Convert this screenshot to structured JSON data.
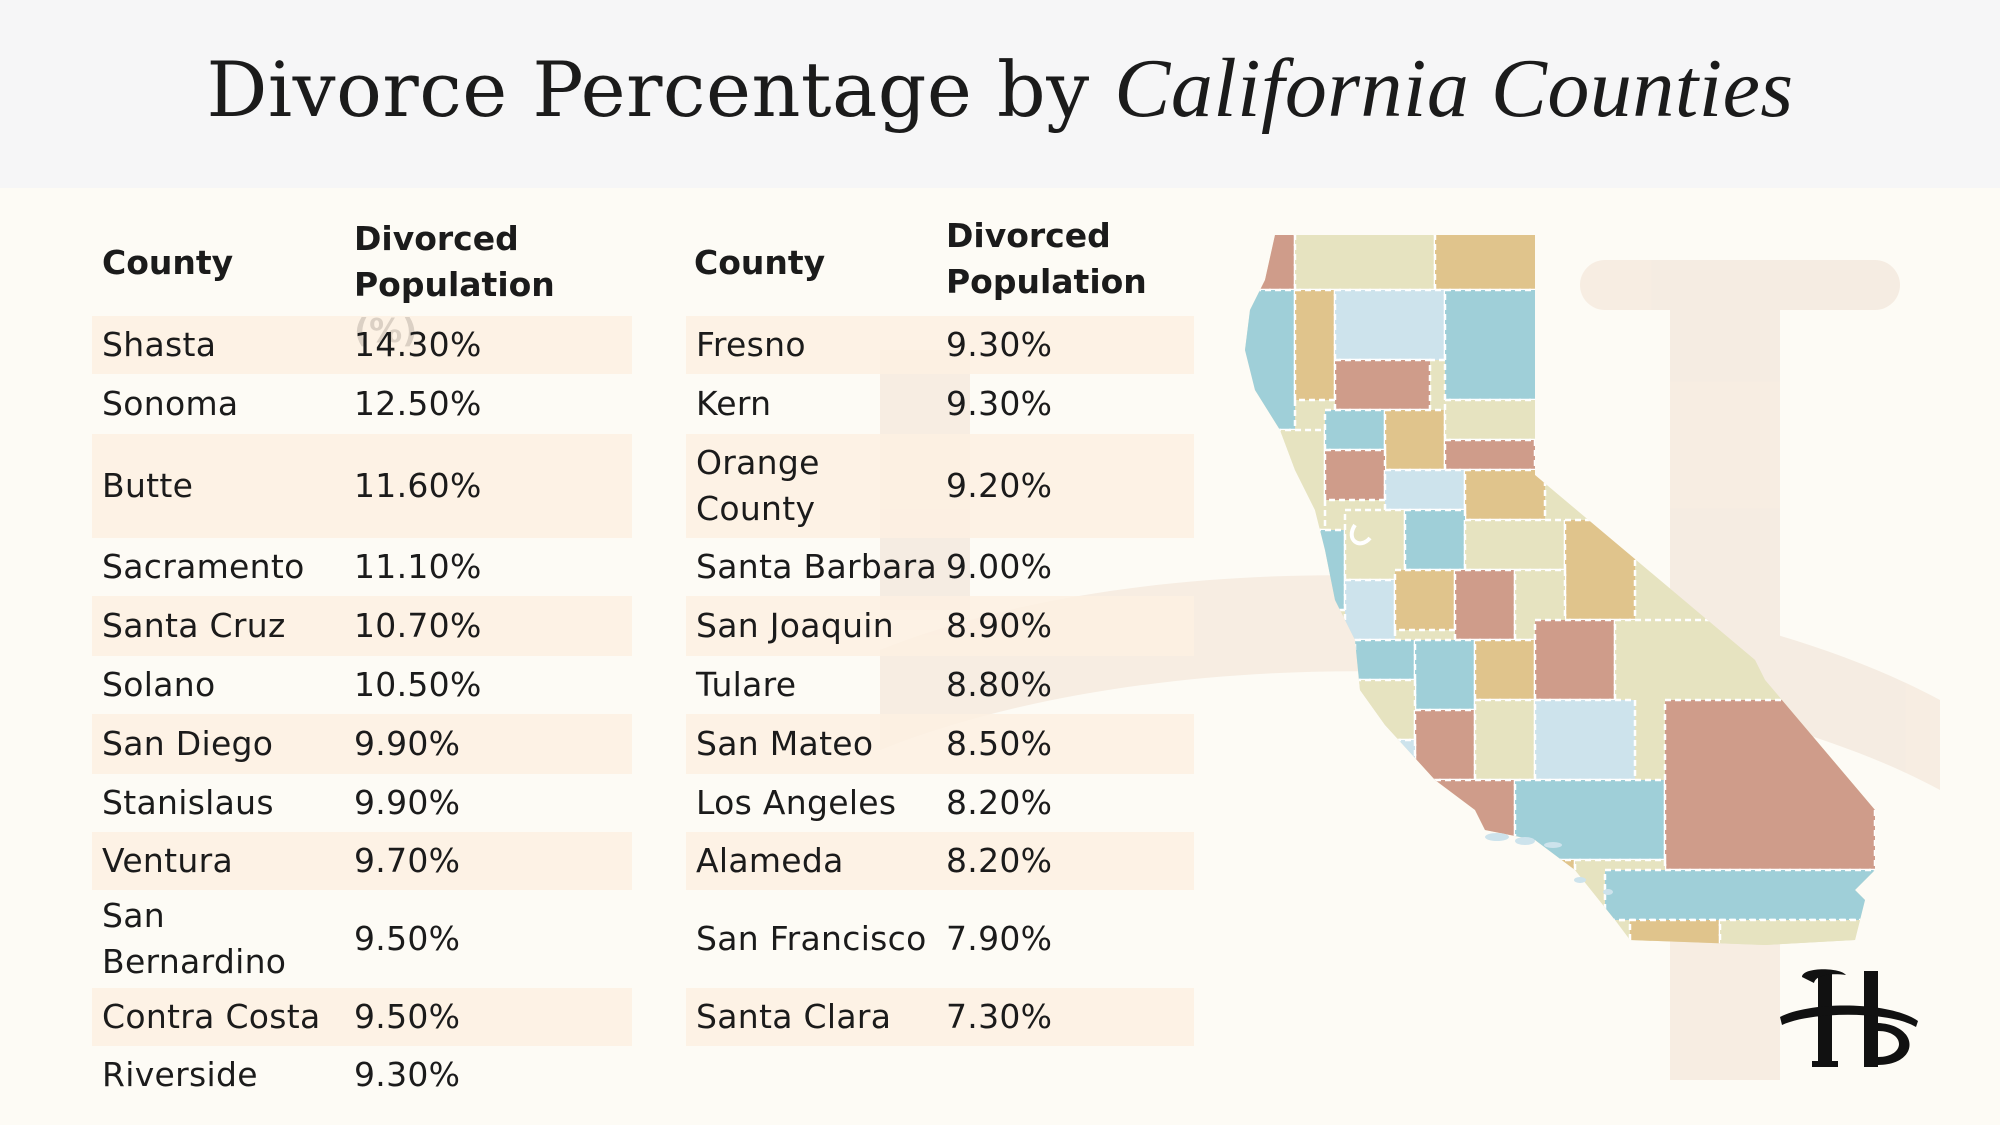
{
  "title": {
    "main": "Divorce Percentage by ",
    "script": "California Counties"
  },
  "tables": [
    {
      "header_county": "County",
      "header_value_line1": "Divorced",
      "header_value_line2": "Population (%)",
      "rows": [
        {
          "county": "Shasta",
          "value": "14.30%"
        },
        {
          "county": "Sonoma",
          "value": "12.50%"
        },
        {
          "county": "Butte",
          "value": "11.60%"
        },
        {
          "county": "Sacramento",
          "value": "11.10%"
        },
        {
          "county": "Santa Cruz",
          "value": "10.70%"
        },
        {
          "county": "Solano",
          "value": "10.50%"
        },
        {
          "county": "San Diego",
          "value": "9.90%"
        },
        {
          "county": "Stanislaus",
          "value": "9.90%"
        },
        {
          "county": "Ventura",
          "value": "9.70%"
        },
        {
          "county": "San Bernardino",
          "value": "9.50%"
        },
        {
          "county": "Contra Costa",
          "value": "9.50%"
        },
        {
          "county": "Riverside",
          "value": "9.30%"
        }
      ]
    },
    {
      "header_county": "County",
      "header_value_line1": "Divorced",
      "header_value_line2": "Population",
      "rows": [
        {
          "county": "Fresno",
          "value": "9.30%"
        },
        {
          "county": "Kern",
          "value": "9.30%"
        },
        {
          "county": "Orange County",
          "value": "9.20%"
        },
        {
          "county": "Santa Barbara",
          "value": "9.00%"
        },
        {
          "county": "San Joaquin",
          "value": "8.90%"
        },
        {
          "county": "Tulare",
          "value": "8.80%"
        },
        {
          "county": "San Mateo",
          "value": "8.50%"
        },
        {
          "county": "Los Angeles",
          "value": "8.20%"
        },
        {
          "county": "Alameda",
          "value": "8.20%"
        },
        {
          "county": "San Francisco",
          "value": "7.90%"
        },
        {
          "county": "Santa Clara",
          "value": "7.30%"
        }
      ]
    }
  ],
  "chart_data": {
    "type": "table",
    "title": "Divorce Percentage by California Counties",
    "columns": [
      "County",
      "Divorced Population (%)"
    ],
    "rows": [
      [
        "Shasta",
        14.3
      ],
      [
        "Sonoma",
        12.5
      ],
      [
        "Butte",
        11.6
      ],
      [
        "Sacramento",
        11.1
      ],
      [
        "Santa Cruz",
        10.7
      ],
      [
        "Solano",
        10.5
      ],
      [
        "San Diego",
        9.9
      ],
      [
        "Stanislaus",
        9.9
      ],
      [
        "Ventura",
        9.7
      ],
      [
        "San Bernardino",
        9.5
      ],
      [
        "Contra Costa",
        9.5
      ],
      [
        "Riverside",
        9.3
      ],
      [
        "Fresno",
        9.3
      ],
      [
        "Kern",
        9.3
      ],
      [
        "Orange County",
        9.2
      ],
      [
        "Santa Barbara",
        9.0
      ],
      [
        "San Joaquin",
        8.9
      ],
      [
        "Tulare",
        8.8
      ],
      [
        "San Mateo",
        8.5
      ],
      [
        "Los Angeles",
        8.2
      ],
      [
        "Alameda",
        8.2
      ],
      [
        "San Francisco",
        7.9
      ],
      [
        "Santa Clara",
        7.3
      ]
    ]
  },
  "colors": {
    "background": "#fdfbf5",
    "header_band": "#f6f6f7",
    "row_shade": "#fdf0e2",
    "map_blue": "#9fcfd8",
    "map_rose": "#cf9c8a",
    "map_tan": "#e0c48c",
    "map_cream": "#e6e3c0",
    "map_lightblue": "#cde3ec"
  },
  "icons": {
    "logo": "hb-monogram-logo",
    "map": "california-county-map"
  }
}
